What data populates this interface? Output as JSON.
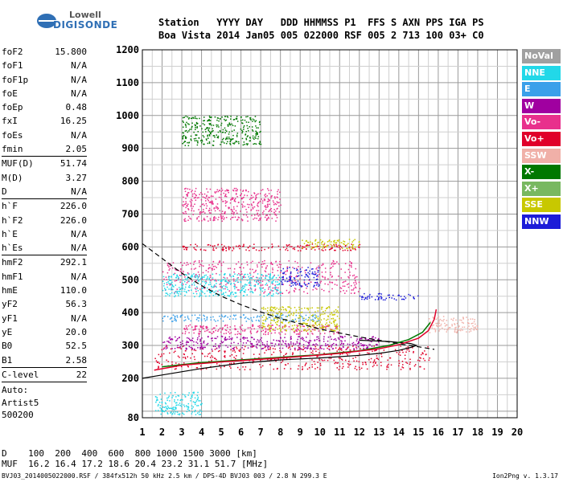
{
  "logo": {
    "line1": "Lowell",
    "line2": "DIGISONDE"
  },
  "header": {
    "row1": "Station   YYYY DAY   DDD HHMMSS P1  FFS S AXN PPS IGA PS",
    "row2": "Boa Vista 2014 Jan05 005 022000 RSF 005 2 713 100 03+ C0"
  },
  "params": [
    {
      "label": "foF2",
      "value": "15.800"
    },
    {
      "label": "foF1",
      "value": "N/A"
    },
    {
      "label": "foF1p",
      "value": "N/A"
    },
    {
      "label": "foE",
      "value": "N/A"
    },
    {
      "label": "foEp",
      "value": "0.48"
    },
    {
      "label": "fxI",
      "value": "16.25"
    },
    {
      "label": "foEs",
      "value": "N/A"
    },
    {
      "label": "fmin",
      "value": "2.05"
    },
    {
      "sep": true
    },
    {
      "label": "MUF(D)",
      "value": "51.74"
    },
    {
      "label": "M(D)",
      "value": "3.27"
    },
    {
      "label": "D",
      "value": "N/A"
    },
    {
      "sep": true
    },
    {
      "label": "h`F",
      "value": "226.0"
    },
    {
      "label": "h`F2",
      "value": "226.0"
    },
    {
      "label": "h`E",
      "value": "N/A"
    },
    {
      "label": "h`Es",
      "value": "N/A"
    },
    {
      "sep": true
    },
    {
      "label": "hmF2",
      "value": "292.1"
    },
    {
      "label": "hmF1",
      "value": "N/A"
    },
    {
      "label": "hmE",
      "value": "110.0"
    },
    {
      "label": "yF2",
      "value": "56.3"
    },
    {
      "label": "yF1",
      "value": "N/A"
    },
    {
      "label": "yE",
      "value": "20.0"
    },
    {
      "label": "B0",
      "value": "52.5"
    },
    {
      "label": "B1",
      "value": "2.58"
    },
    {
      "sep": true
    },
    {
      "label": "C-level",
      "value": "22"
    },
    {
      "sep": true
    }
  ],
  "auto": {
    "line1": "Auto:",
    "line2": "Artist5",
    "line3": "500200"
  },
  "legend": [
    {
      "label": "NoVal",
      "color": "#a0a0a0"
    },
    {
      "label": "NNE",
      "color": "#22d8e8"
    },
    {
      "label": "E",
      "color": "#3aa0ea"
    },
    {
      "label": "W",
      "color": "#a000a0"
    },
    {
      "label": "Vo-",
      "color": "#e8308c"
    },
    {
      "label": "Vo+",
      "color": "#e0002a"
    },
    {
      "label": "SSW",
      "color": "#f0b0a8"
    },
    {
      "label": "X-",
      "color": "#007800"
    },
    {
      "label": "X+",
      "color": "#78b860"
    },
    {
      "label": "SSE",
      "color": "#c8c800"
    },
    {
      "label": "NNW",
      "color": "#1c1cd8"
    }
  ],
  "bottom": {
    "row1": "D    100  200  400  600  800 1000 1500 3000 [km]",
    "row2": "MUF  16.2 16.4 17.2 18.6 20.4 23.2 31.1 51.7 [MHz]",
    "file": "BVJ03_2014005022000.RSF / 384fx512h 50 kHz 2.5 km / DPS-4D BVJ03 003 / 2.8 N 299.3 E",
    "version": "Ion2Png v. 1.3.17"
  },
  "chart_data": {
    "type": "scatter",
    "x_ticks": [
      "1",
      "2",
      "3",
      "4",
      "5",
      "6",
      "7",
      "8",
      "9",
      "10",
      "11",
      "12",
      "13",
      "14",
      "15",
      "16",
      "17",
      "18",
      "19",
      "20"
    ],
    "y_ticks": [
      "80",
      "200",
      "300",
      "400",
      "500",
      "600",
      "700",
      "800",
      "900",
      "1000",
      "1100",
      "1200"
    ],
    "xlim": [
      1,
      20
    ],
    "ylim": [
      80,
      1200
    ],
    "grid": true,
    "legend_position": "right",
    "profile_solid": [
      [
        1.0,
        200
      ],
      [
        2,
        210
      ],
      [
        4,
        230
      ],
      [
        6,
        246
      ],
      [
        8,
        256
      ],
      [
        10,
        262
      ],
      [
        12,
        270
      ],
      [
        13,
        276
      ],
      [
        14,
        285
      ],
      [
        14.6,
        294
      ],
      [
        14.9,
        300
      ],
      [
        14.6,
        306
      ],
      [
        13.5,
        312
      ],
      [
        12,
        316
      ]
    ],
    "trace_o": [
      [
        1.6,
        225
      ],
      [
        3,
        240
      ],
      [
        5,
        250
      ],
      [
        7,
        258
      ],
      [
        9,
        266
      ],
      [
        11,
        276
      ],
      [
        13,
        290
      ],
      [
        14,
        302
      ],
      [
        15,
        322
      ],
      [
        15.5,
        345
      ],
      [
        15.8,
        380
      ],
      [
        15.9,
        410
      ]
    ],
    "trace_x": [
      [
        2,
        235
      ],
      [
        4,
        248
      ],
      [
        6,
        256
      ],
      [
        8,
        264
      ],
      [
        10,
        272
      ],
      [
        12,
        284
      ],
      [
        13.5,
        300
      ],
      [
        14.5,
        318
      ],
      [
        15.2,
        340
      ],
      [
        15.6,
        370
      ]
    ],
    "dashed_profile": [
      [
        1.0,
        610
      ],
      [
        2,
        565
      ],
      [
        3,
        520
      ],
      [
        4,
        482
      ],
      [
        5,
        450
      ],
      [
        6,
        424
      ],
      [
        7,
        402
      ],
      [
        8,
        382
      ],
      [
        9,
        366
      ],
      [
        10,
        350
      ],
      [
        11,
        338
      ],
      [
        12,
        326
      ],
      [
        13,
        316
      ],
      [
        14,
        305
      ],
      [
        15,
        296
      ],
      [
        15.8,
        288
      ]
    ],
    "echo_bands": [
      {
        "x": [
          1.6,
          15.6
        ],
        "y": [
          228,
          300
        ],
        "color": "#e0002a"
      },
      {
        "x": [
          2,
          13
        ],
        "y": [
          290,
          330
        ],
        "color": "#a000a0"
      },
      {
        "x": [
          3,
          11
        ],
        "y": [
          335,
          365
        ],
        "color": "#e8308c"
      },
      {
        "x": [
          2,
          10
        ],
        "y": [
          375,
          395
        ],
        "color": "#3aa0ea"
      },
      {
        "x": [
          2,
          12
        ],
        "y": [
          460,
          560
        ],
        "color": "#e8308c"
      },
      {
        "x": [
          2,
          8
        ],
        "y": [
          450,
          520
        ],
        "color": "#22d8e8"
      },
      {
        "x": [
          3,
          12
        ],
        "y": [
          590,
          610
        ],
        "color": "#e0002a"
      },
      {
        "x": [
          3,
          8
        ],
        "y": [
          680,
          780
        ],
        "color": "#e8308c"
      },
      {
        "x": [
          3,
          7
        ],
        "y": [
          910,
          1000
        ],
        "color": "#007800"
      },
      {
        "x": [
          7,
          11
        ],
        "y": [
          345,
          420
        ],
        "color": "#c8c800"
      },
      {
        "x": [
          9,
          12
        ],
        "y": [
          595,
          625
        ],
        "color": "#c8c800"
      },
      {
        "x": [
          12,
          15
        ],
        "y": [
          440,
          460
        ],
        "color": "#1c1cd8"
      },
      {
        "x": [
          8,
          10
        ],
        "y": [
          480,
          540
        ],
        "color": "#1c1cd8"
      },
      {
        "x": [
          1.6,
          4
        ],
        "y": [
          90,
          160
        ],
        "color": "#22d8e8"
      },
      {
        "x": [
          15.5,
          18
        ],
        "y": [
          340,
          390
        ],
        "color": "#f0b0a8"
      }
    ]
  }
}
